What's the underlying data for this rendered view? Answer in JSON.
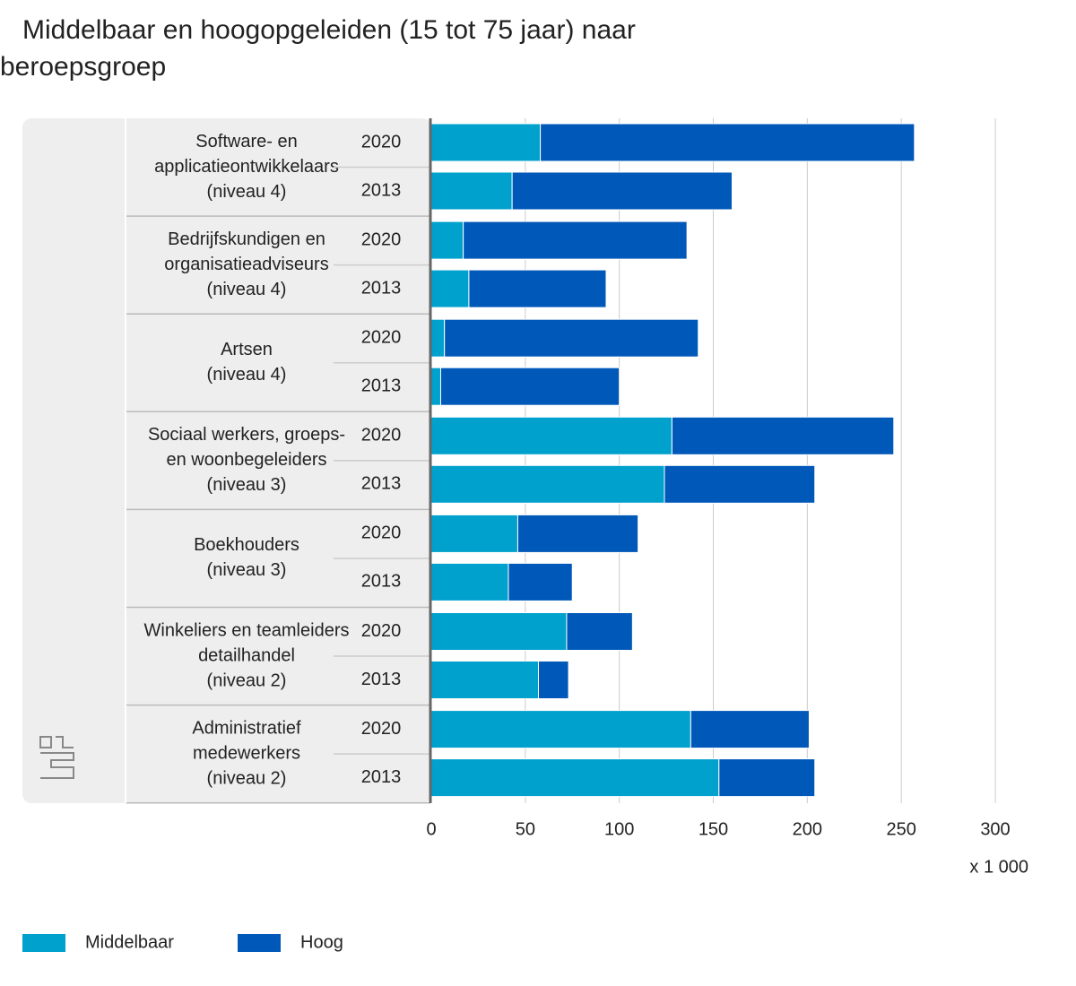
{
  "chart_data": {
    "type": "stacked-bar-horizontal",
    "title": "Middelbaar en hoogopgeleiden (15 tot 75 jaar) naar",
    "title_line2": "beroepsgroep",
    "groups": [
      [
        "Software- en",
        "applicatieontwikkelaars",
        "(niveau 4)"
      ],
      [
        "Bedrijfskundigen en",
        "organisatieadviseurs",
        "(niveau 4)"
      ],
      [
        "Artsen",
        "(niveau 4)"
      ],
      [
        "Sociaal werkers, groeps-",
        "en woonbegeleiders",
        "(niveau 3)"
      ],
      [
        "Boekhouders",
        "(niveau 3)"
      ],
      [
        "Winkeliers en teamleiders",
        "detailhandel",
        "(niveau 2)"
      ],
      [
        "Administratief",
        "medewerkers",
        "(niveau 2)"
      ]
    ],
    "categories": [
      "2020",
      "2013",
      "2020",
      "2013",
      "2020",
      "2013",
      "2020",
      "2013",
      "2020",
      "2013",
      "2020",
      "2013",
      "2020",
      "2013"
    ],
    "series": [
      {
        "name": "Middelbaar",
        "color": "#00a1cd",
        "values": [
          58,
          43,
          17,
          20,
          7,
          5,
          128,
          124,
          46,
          41,
          72,
          57,
          138,
          153
        ]
      },
      {
        "name": "Hoog",
        "color": "#0058b8",
        "values": [
          199,
          117,
          119,
          73,
          135,
          95,
          118,
          80,
          64,
          34,
          35,
          16,
          63,
          51
        ]
      }
    ],
    "xlim": [
      0,
      300
    ],
    "xticks": [
      0,
      50,
      100,
      150,
      200,
      250,
      300
    ],
    "x_unit": "x 1 000",
    "grid": true
  }
}
